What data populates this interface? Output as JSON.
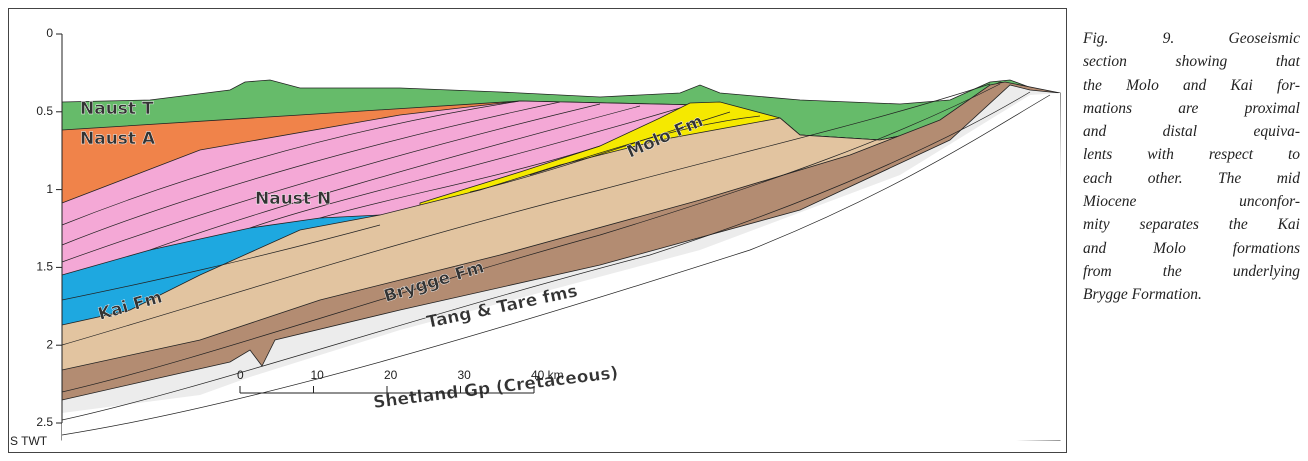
{
  "axis": {
    "ticks": [
      0,
      0.5,
      1,
      1.5,
      2,
      2.5
    ],
    "label": "S TWT"
  },
  "scale_bar": {
    "ticks": [
      0,
      10,
      20,
      30,
      {
        "value": 40,
        "label": "40 km"
      }
    ]
  },
  "units": {
    "naust_t": "Naust T",
    "naust_a": "Naust A",
    "naust_n": "Naust N",
    "kai": "Kai Fm",
    "brygge": "Brygge Fm",
    "molo": "Molo Fm",
    "tang_tare": "Tang & Tare fms",
    "shetland": "Shetland Gp (Cretaceous)"
  },
  "caption": [
    "Fig. 9. Geoseismic",
    "section showing that",
    "the Molo and Kai for-",
    "mations are proximal",
    "and distal equiva-",
    "lents with respect to",
    "each other. The mid",
    "Miocene unconfor-",
    "mity separates the Kai",
    "and Molo formations",
    "from the underlying",
    "Brygge Formation."
  ]
}
